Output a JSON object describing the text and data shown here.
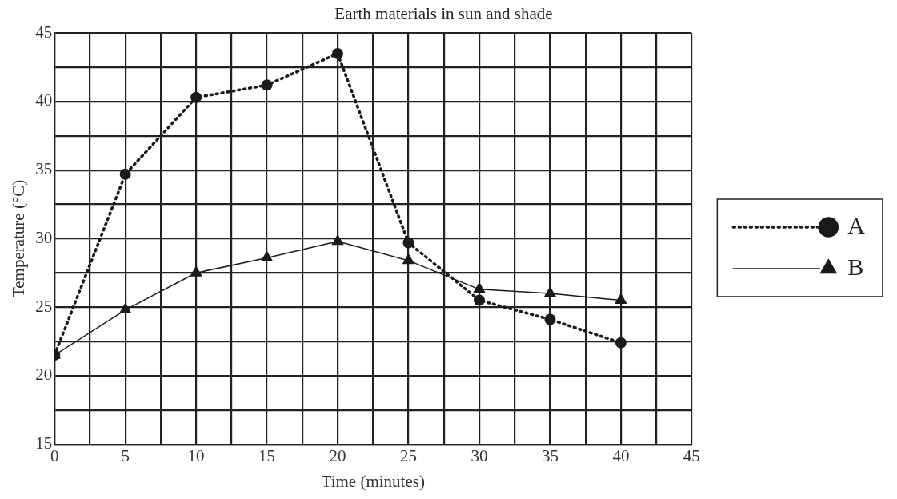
{
  "chart_data": {
    "type": "line",
    "title": "Earth materials in sun and shade",
    "xlabel": "Time (minutes)",
    "ylabel": "Temperature (°C)",
    "x": [
      0,
      5,
      10,
      15,
      20,
      25,
      30,
      35,
      40
    ],
    "series": [
      {
        "name": "A",
        "color": "#1a1a1a",
        "marker": "circle",
        "line_style": "dotted",
        "values": [
          21.5,
          34.7,
          40.3,
          41.2,
          43.5,
          29.7,
          25.5,
          24.1,
          22.4
        ]
      },
      {
        "name": "B",
        "color": "#1a1a1a",
        "marker": "triangle",
        "line_style": "solid",
        "values": [
          21.5,
          24.8,
          27.5,
          28.6,
          29.8,
          28.4,
          26.3,
          26.0,
          25.5
        ]
      }
    ],
    "xlim": [
      0,
      45
    ],
    "ylim": [
      15,
      45
    ],
    "xticks": [
      0,
      {
        "value": 2.5,
        "label": null
      },
      5,
      {
        "value": 7.5,
        "label": null
      },
      10,
      {
        "value": 12.5,
        "label": null
      },
      15,
      {
        "value": 17.5,
        "label": null
      },
      20,
      {
        "value": 22.5,
        "label": null
      },
      25,
      {
        "value": 27.5,
        "label": null
      },
      30,
      {
        "value": 32.5,
        "label": null
      },
      35,
      {
        "value": 37.5,
        "label": null
      },
      40,
      {
        "value": 42.5,
        "label": null
      },
      45
    ],
    "yticks": [
      15,
      {
        "value": 17.5,
        "label": null
      },
      20,
      {
        "value": 22.5,
        "label": null
      },
      25,
      {
        "value": 27.5,
        "label": null
      },
      30,
      {
        "value": 32.5,
        "label": null
      },
      35,
      {
        "value": 37.5,
        "label": null
      },
      40,
      {
        "value": 42.5,
        "label": null
      },
      45
    ],
    "grid": true,
    "legend": "right"
  }
}
